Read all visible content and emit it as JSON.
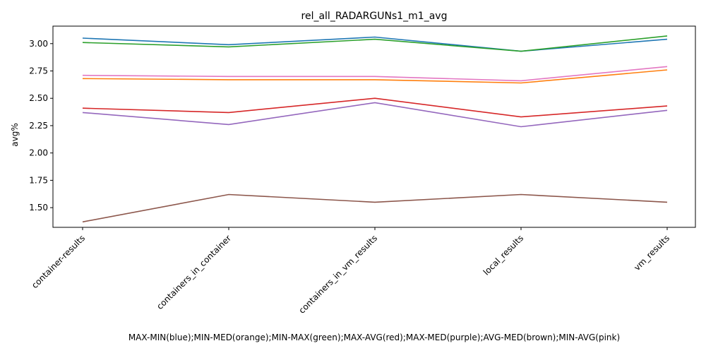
{
  "chart_data": {
    "type": "line",
    "title": "rel_all_RADARGUNs1_m1_avg",
    "xlabel": "MAX-MIN(blue);MIN-MED(orange);MIN-MAX(green);MAX-AVG(red);MAX-MED(purple);AVG-MED(brown);MIN-AVG(pink)",
    "ylabel": "avg%",
    "ylim": [
      1.32,
      3.16
    ],
    "yticks": [
      "1.50",
      "1.75",
      "2.00",
      "2.25",
      "2.50",
      "2.75",
      "3.00"
    ],
    "categories": [
      "container-results",
      "containers_in_container",
      "containers_in_vm_results",
      "local_results",
      "vm_results"
    ],
    "grid": false,
    "series": [
      {
        "name": "MAX-MIN",
        "color": "#1f77b4",
        "values": [
          3.05,
          2.99,
          3.06,
          2.93,
          3.04
        ]
      },
      {
        "name": "MIN-MED",
        "color": "#ff7f0e",
        "values": [
          2.68,
          2.67,
          2.67,
          2.64,
          2.76
        ]
      },
      {
        "name": "MIN-MAX",
        "color": "#2ca02c",
        "values": [
          3.01,
          2.97,
          3.04,
          2.93,
          3.07
        ]
      },
      {
        "name": "MAX-AVG",
        "color": "#d62728",
        "values": [
          2.41,
          2.37,
          2.5,
          2.33,
          2.43
        ]
      },
      {
        "name": "MAX-MED",
        "color": "#9467bd",
        "values": [
          2.37,
          2.26,
          2.46,
          2.24,
          2.39
        ]
      },
      {
        "name": "AVG-MED",
        "color": "#8c564b",
        "values": [
          1.37,
          1.62,
          1.55,
          1.62,
          1.55
        ]
      },
      {
        "name": "MIN-AVG",
        "color": "#e377c2",
        "values": [
          2.71,
          2.7,
          2.7,
          2.66,
          2.79
        ]
      }
    ]
  }
}
